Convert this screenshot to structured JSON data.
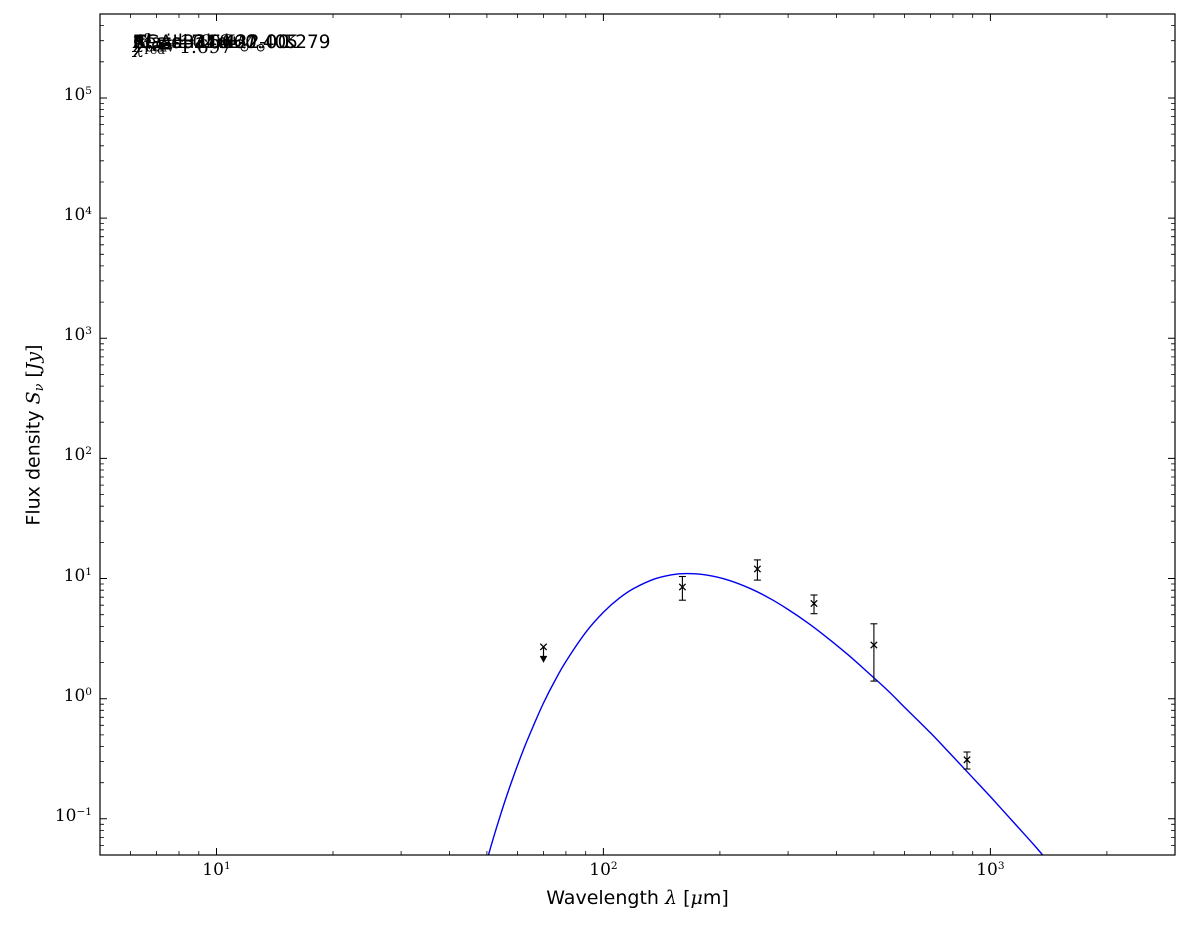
{
  "figure": {
    "background": "#ffffff",
    "frame_color": "#000000",
    "text_color": "#000000"
  },
  "chart_data": {
    "type": "scatter",
    "title": "",
    "x_scale": "log",
    "y_scale": "log",
    "xlim": [
      5,
      3000
    ],
    "ylim": [
      0.05,
      500000
    ],
    "grid": false,
    "x_tick_exponents": [
      1,
      2,
      3
    ],
    "y_tick_exponents": [
      -1,
      0,
      1,
      2,
      3,
      4,
      5
    ],
    "xlabel_segments": [
      {
        "text": "Wavelength ",
        "style": "sans"
      },
      {
        "text": "λ",
        "style": "it"
      },
      {
        "text": " [",
        "style": "sans"
      },
      {
        "text": "μ",
        "style": "it"
      },
      {
        "text": "m]",
        "style": "sans"
      }
    ],
    "ylabel_segments": [
      {
        "text": "Flux density ",
        "style": "sans"
      },
      {
        "text": "S",
        "style": "it"
      },
      {
        "text": "ν",
        "style": "it-sub"
      },
      {
        "text": " [",
        "style": "math"
      },
      {
        "text": "Jy",
        "style": "it"
      },
      {
        "text": "]",
        "style": "math"
      }
    ],
    "annotation_lines": [
      {
        "name": "source",
        "segments": [
          {
            "text": "AGAL331.422-00.279",
            "style": "sans"
          }
        ]
      },
      {
        "name": "class",
        "segments": [
          {
            "text": "Class: 24d",
            "style": "sans"
          }
        ]
      },
      {
        "name": "dust-temperature",
        "segments": [
          {
            "text": "T",
            "style": "it"
          },
          {
            "text": "c",
            "style": "sub"
          },
          {
            "text": " = 17.5 ± 2.0 K",
            "style": "math"
          }
        ]
      },
      {
        "name": "bolometric-luminosity",
        "segments": [
          {
            "text": "L",
            "style": "it"
          },
          {
            "text": "bol",
            "style": "sub"
          },
          {
            "text": " = 7.0 ",
            "style": "math"
          },
          {
            "text": "L",
            "style": "it"
          },
          {
            "text": "⊙",
            "style": "sub"
          }
        ]
      },
      {
        "name": "envelope-mass",
        "segments": [
          {
            "text": "M",
            "style": "it"
          },
          {
            "text": "env",
            "style": "sub"
          },
          {
            "text": " = 2.0 ",
            "style": "math"
          },
          {
            "text": "M",
            "style": "it"
          },
          {
            "text": "⊙",
            "style": "sub"
          }
        ]
      },
      {
        "name": "chi-squared",
        "segments": [
          {
            "text": "χ",
            "style": "it"
          },
          {
            "text": "2",
            "style": "sup"
          },
          {
            "text": " = 1.697",
            "style": "math"
          }
        ]
      },
      {
        "name": "residual",
        "segments": [
          {
            "text": "Residual = -0.405",
            "style": "sans"
          }
        ]
      },
      {
        "name": "chi-squared-reduced",
        "segments": [
          {
            "text": "χ",
            "style": "it"
          },
          {
            "sup": "2",
            "sub": "red",
            "style": "stack"
          },
          {
            "text": " = 0.566",
            "style": "math"
          }
        ]
      }
    ],
    "fit_parameters": {
      "source": "AGAL331.422-00.279",
      "class": "24d",
      "T_c_K": 17.5,
      "T_c_err_K": 2.0,
      "L_bol_Lsun": 7.0,
      "M_env_Msun": 2.0,
      "chi2": 1.697,
      "residual": -0.405,
      "chi2_red": 0.566
    },
    "series": [
      {
        "name": "greybody-fit",
        "type": "line",
        "color": "#0000ee",
        "points": [
          [
            46,
            0.016
          ],
          [
            50,
            0.045
          ],
          [
            54,
            0.104
          ],
          [
            58,
            0.207
          ],
          [
            62,
            0.37
          ],
          [
            66,
            0.6
          ],
          [
            70,
            0.92
          ],
          [
            75,
            1.42
          ],
          [
            80,
            2.04
          ],
          [
            90,
            3.56
          ],
          [
            100,
            5.24
          ],
          [
            110,
            6.88
          ],
          [
            120,
            8.29
          ],
          [
            135,
            9.87
          ],
          [
            150,
            10.74
          ],
          [
            165,
            11.0
          ],
          [
            185,
            10.69
          ],
          [
            210,
            9.71
          ],
          [
            240,
            8.23
          ],
          [
            270,
            6.8
          ],
          [
            300,
            5.53
          ],
          [
            340,
            4.2
          ],
          [
            380,
            3.19
          ],
          [
            430,
            2.3
          ],
          [
            480,
            1.68
          ],
          [
            540,
            1.19
          ],
          [
            600,
            0.85
          ],
          [
            700,
            0.52
          ],
          [
            800,
            0.33
          ],
          [
            900,
            0.22
          ],
          [
            1000,
            0.153
          ],
          [
            1150,
            0.093
          ],
          [
            1300,
            0.06
          ],
          [
            1500,
            0.035
          ]
        ]
      },
      {
        "name": "photometry",
        "type": "scatter",
        "color": "#000000",
        "marker": "x",
        "points": [
          {
            "wavelength_um": 70,
            "flux_jy": 2.7,
            "upper_limit": true
          },
          {
            "wavelength_um": 160,
            "flux_jy": 8.5,
            "err_lo": 1.9,
            "err_hi": 1.9
          },
          {
            "wavelength_um": 250,
            "flux_jy": 12.0,
            "err_lo": 2.3,
            "err_hi": 2.3
          },
          {
            "wavelength_um": 350,
            "flux_jy": 6.2,
            "err_lo": 1.1,
            "err_hi": 1.1
          },
          {
            "wavelength_um": 500,
            "flux_jy": 2.8,
            "err_lo": 1.4,
            "err_hi": 1.4
          },
          {
            "wavelength_um": 870,
            "flux_jy": 0.31,
            "err_lo": 0.05,
            "err_hi": 0.05
          }
        ]
      }
    ]
  }
}
